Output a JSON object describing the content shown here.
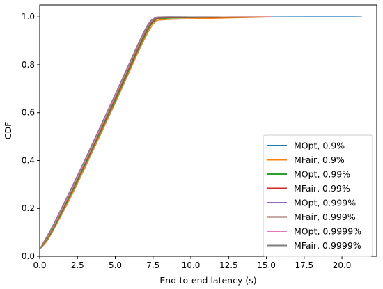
{
  "chart_data": {
    "type": "line",
    "title": "",
    "xlabel": "End-to-end latency (s)",
    "ylabel": "CDF",
    "xlim": [
      0,
      22.3
    ],
    "ylim": [
      0,
      1.05
    ],
    "xticks": [
      0,
      2.5,
      5,
      7.5,
      10,
      12.5,
      15,
      17.5,
      20
    ],
    "xtick_labels": [
      "0.0",
      "2.5",
      "5.0",
      "7.5",
      "10.0",
      "12.5",
      "15.0",
      "17.5",
      "20.0"
    ],
    "yticks": [
      0,
      0.2,
      0.4,
      0.6,
      0.8,
      1.0
    ],
    "ytick_labels": [
      "0.0",
      "0.2",
      "0.4",
      "0.6",
      "0.8",
      "1.0"
    ],
    "grid": false,
    "legend_position": "lower-right",
    "series": [
      {
        "name": "MOpt, 0.9%",
        "color": "#1f77b4",
        "x": [
          0,
          0.5,
          1,
          2,
          3,
          4,
          5,
          6,
          6.5,
          7,
          7.3,
          7.6,
          8,
          10,
          15,
          21.3
        ],
        "y": [
          0.03,
          0.075,
          0.13,
          0.255,
          0.385,
          0.52,
          0.655,
          0.795,
          0.865,
          0.93,
          0.965,
          0.985,
          0.995,
          0.998,
          1.0,
          1.0
        ]
      },
      {
        "name": "MFair, 0.9%",
        "color": "#ff7f0e",
        "x": [
          0,
          0.5,
          1,
          2,
          3,
          4,
          5,
          6,
          6.5,
          7,
          7.3,
          7.6,
          8,
          10,
          15.3
        ],
        "y": [
          0.03,
          0.065,
          0.12,
          0.24,
          0.37,
          0.505,
          0.64,
          0.78,
          0.85,
          0.915,
          0.95,
          0.975,
          0.987,
          0.992,
          1.0
        ]
      },
      {
        "name": "MOpt, 0.99%",
        "color": "#2ca02c",
        "x": [
          0,
          0.5,
          1,
          2,
          3,
          4,
          5,
          6,
          6.5,
          7,
          7.3,
          7.6,
          8,
          10,
          15.2
        ],
        "y": [
          0.03,
          0.072,
          0.126,
          0.25,
          0.38,
          0.515,
          0.65,
          0.79,
          0.86,
          0.925,
          0.96,
          0.982,
          0.993,
          0.997,
          1.0
        ]
      },
      {
        "name": "MFair, 0.99%",
        "color": "#d62728",
        "x": [
          0,
          0.5,
          1,
          2,
          3,
          4,
          5,
          6,
          6.5,
          7,
          7.3,
          7.6,
          8,
          10,
          15.3
        ],
        "y": [
          0.03,
          0.078,
          0.134,
          0.26,
          0.39,
          0.525,
          0.662,
          0.8,
          0.87,
          0.935,
          0.968,
          0.988,
          0.996,
          0.998,
          1.0
        ]
      },
      {
        "name": "MOpt, 0.999%",
        "color": "#9467bd",
        "x": [
          0,
          0.5,
          1,
          2,
          3,
          4,
          5,
          6,
          6.5,
          7,
          7.3,
          7.6,
          8,
          10,
          12
        ],
        "y": [
          0.03,
          0.082,
          0.14,
          0.268,
          0.4,
          0.537,
          0.675,
          0.815,
          0.885,
          0.95,
          0.98,
          0.995,
          1.0,
          1.0,
          1.0
        ]
      },
      {
        "name": "MFair, 0.999%",
        "color": "#8c564b",
        "x": [
          0,
          0.5,
          1,
          2,
          3,
          4,
          5,
          6,
          6.5,
          7,
          7.3,
          7.6,
          8,
          10,
          12
        ],
        "y": [
          0.03,
          0.076,
          0.132,
          0.257,
          0.387,
          0.522,
          0.658,
          0.797,
          0.867,
          0.932,
          0.966,
          0.986,
          0.996,
          0.999,
          1.0
        ]
      },
      {
        "name": "MOpt, 0.9999%",
        "color": "#e377c2",
        "x": [
          0,
          0.5,
          1,
          2,
          3,
          4,
          5,
          6,
          6.5,
          7,
          7.3,
          7.6,
          8,
          10,
          12
        ],
        "y": [
          0.03,
          0.08,
          0.137,
          0.264,
          0.395,
          0.531,
          0.668,
          0.808,
          0.878,
          0.943,
          0.975,
          0.992,
          0.999,
          1.0,
          1.0
        ]
      },
      {
        "name": "MFair, 0.9999%",
        "color": "#7f7f7f",
        "x": [
          0,
          0.5,
          1,
          2,
          3,
          4,
          5,
          6,
          6.5,
          7,
          7.3,
          7.6,
          8,
          10,
          12
        ],
        "y": [
          0.03,
          0.085,
          0.144,
          0.272,
          0.404,
          0.54,
          0.677,
          0.815,
          0.885,
          0.947,
          0.978,
          0.994,
          1.0,
          1.0,
          1.0
        ]
      }
    ]
  }
}
